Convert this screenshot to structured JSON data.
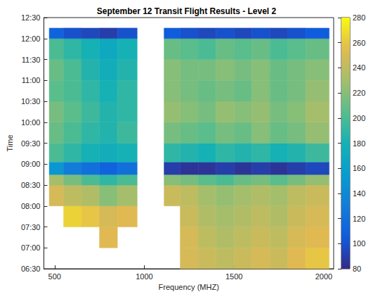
{
  "chart_data": {
    "type": "heatmap",
    "title": "September 12 Transit Flight Results - Level 2",
    "x_label": "Frequency (MHZ)",
    "y_label": "Time",
    "xlim": [
      440,
      2055
    ],
    "xticks": [
      500,
      1000,
      1500,
      2000
    ],
    "ylim": [
      6.5,
      12.5
    ],
    "yticks": [
      {
        "value": 6.5,
        "label": "06:30"
      },
      {
        "value": 7,
        "label": "07:00"
      },
      {
        "value": 7.5,
        "label": "07:30"
      },
      {
        "value": 8,
        "label": "08:00"
      },
      {
        "value": 8.5,
        "label": "08:30"
      },
      {
        "value": 9,
        "label": "09:00"
      },
      {
        "value": 9.5,
        "label": "09:30"
      },
      {
        "value": 10,
        "label": "10:00"
      },
      {
        "value": 10.5,
        "label": "10:30"
      },
      {
        "value": 11,
        "label": "11:00"
      },
      {
        "value": 11.5,
        "label": "11:30"
      },
      {
        "value": 12,
        "label": "12:00"
      },
      {
        "value": 12.5,
        "label": "12:30"
      }
    ],
    "grid": false,
    "cells": {
      "x_edges": [
        470,
        550,
        650,
        750,
        850,
        960,
        1110,
        1200,
        1300,
        1400,
        1500,
        1600,
        1700,
        1800,
        1900,
        2030
      ],
      "y_edges": [
        6.5,
        7.0,
        7.5,
        8.0,
        8.5,
        8.75,
        9.05,
        9.5,
        10.0,
        10.5,
        11.0,
        11.5,
        12.0,
        12.25
      ],
      "values": [
        [
          null,
          null,
          null,
          null,
          null,
          null,
          null,
          250,
          245,
          240,
          245,
          250,
          245,
          255,
          260
        ],
        [
          null,
          null,
          null,
          255,
          null,
          null,
          null,
          250,
          240,
          235,
          240,
          245,
          240,
          250,
          255
        ],
        [
          null,
          265,
          260,
          250,
          255,
          null,
          null,
          245,
          235,
          230,
          235,
          240,
          235,
          245,
          250
        ],
        [
          250,
          240,
          235,
          220,
          230,
          null,
          245,
          240,
          230,
          225,
          230,
          235,
          230,
          240,
          245
        ],
        [
          230,
          215,
          200,
          190,
          200,
          null,
          220,
          215,
          205,
          200,
          210,
          215,
          205,
          215,
          225
        ],
        [
          150,
          130,
          120,
          110,
          120,
          null,
          90,
          85,
          85,
          90,
          85,
          90,
          85,
          90,
          95
        ],
        [
          200,
          190,
          180,
          175,
          180,
          null,
          190,
          185,
          180,
          190,
          185,
          190,
          180,
          185,
          195
        ],
        [
          210,
          200,
          190,
          185,
          195,
          null,
          215,
          210,
          205,
          215,
          210,
          220,
          210,
          215,
          225
        ],
        [
          215,
          205,
          195,
          185,
          190,
          null,
          225,
          220,
          215,
          225,
          220,
          225,
          215,
          220,
          230
        ],
        [
          205,
          200,
          190,
          180,
          190,
          null,
          220,
          215,
          210,
          215,
          210,
          220,
          210,
          215,
          225
        ],
        [
          210,
          200,
          185,
          175,
          185,
          null,
          220,
          215,
          215,
          220,
          215,
          220,
          210,
          215,
          220
        ],
        [
          200,
          190,
          180,
          170,
          180,
          null,
          210,
          205,
          200,
          210,
          205,
          210,
          200,
          205,
          210
        ],
        [
          110,
          100,
          95,
          90,
          100,
          null,
          105,
          100,
          95,
          100,
          95,
          100,
          95,
          100,
          105
        ]
      ]
    },
    "colorbar": {
      "range": [
        80,
        280
      ],
      "ticks": [
        80,
        100,
        120,
        140,
        160,
        180,
        200,
        220,
        240,
        260,
        280
      ]
    }
  }
}
